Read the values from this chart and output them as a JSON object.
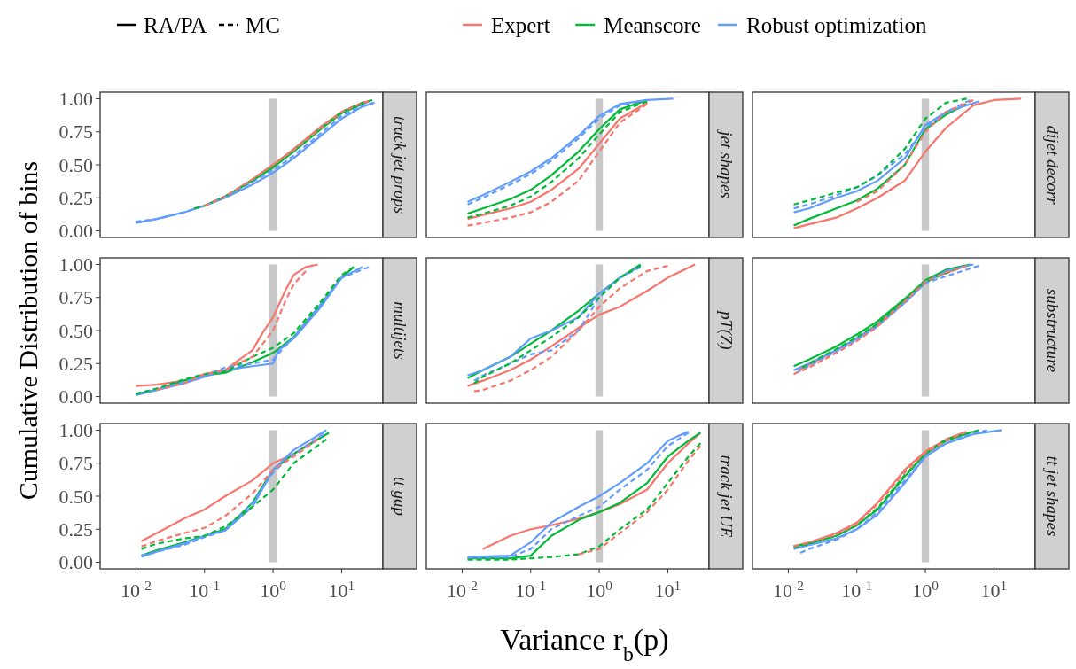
{
  "chart_data": [
    {
      "type": "line",
      "title": "track jet props",
      "legend": "top",
      "annotations": [
        "RA/PA",
        "MC"
      ],
      "log": "x",
      "tick_labels": "y",
      "xlim": [
        0.003,
        40
      ],
      "ylim": [
        -0.05,
        1.05
      ],
      "yticks": [
        {
          "value": 0,
          "label": "0.00"
        },
        {
          "value": 0.25,
          "label": "0.25"
        },
        {
          "value": 0.5,
          "label": "0.50"
        },
        {
          "value": 0.75,
          "label": "0.75"
        },
        {
          "value": 1,
          "label": "1.00"
        }
      ],
      "bands": [
        {
          "axis": "x",
          "from": 0.88,
          "to": 1.13,
          "color": "#c8c8c8"
        }
      ],
      "series": [
        {
          "name": "Expert",
          "color": "#f8766d",
          "line_style": "solid",
          "x": [
            0.1,
            0.2,
            0.5,
            1,
            2,
            5,
            10,
            20,
            25
          ],
          "values": [
            0.19,
            0.26,
            0.39,
            0.5,
            0.62,
            0.79,
            0.9,
            0.97,
            0.98
          ]
        },
        {
          "color": "#f8766d",
          "line_style": "dashed",
          "x": [
            0.1,
            0.2,
            0.5,
            1,
            2,
            5,
            10,
            20,
            25
          ],
          "values": [
            0.19,
            0.26,
            0.39,
            0.5,
            0.61,
            0.78,
            0.9,
            0.97,
            0.98
          ]
        },
        {
          "name": "Meanscore",
          "color": "#00ba38",
          "line_style": "solid",
          "x": [
            0.1,
            0.2,
            0.5,
            1,
            2,
            5,
            10,
            20,
            25
          ],
          "values": [
            0.19,
            0.26,
            0.38,
            0.48,
            0.6,
            0.77,
            0.89,
            0.96,
            0.98
          ]
        },
        {
          "color": "#00ba38",
          "line_style": "dashed",
          "x": [
            0.07,
            0.1,
            0.2,
            0.5,
            1,
            2,
            5,
            10,
            20,
            28
          ],
          "values": [
            0.17,
            0.19,
            0.26,
            0.38,
            0.49,
            0.61,
            0.78,
            0.9,
            0.97,
            0.99
          ]
        },
        {
          "name": "Robust optimization",
          "color": "#619cff",
          "line_style": "solid",
          "x": [
            0.01,
            0.02,
            0.05,
            0.1,
            0.2,
            0.5,
            1,
            2,
            5,
            10,
            20,
            30
          ],
          "values": [
            0.06,
            0.09,
            0.14,
            0.19,
            0.25,
            0.35,
            0.44,
            0.55,
            0.72,
            0.85,
            0.94,
            0.97
          ]
        },
        {
          "color": "#619cff",
          "line_style": "dashed",
          "x": [
            0.01,
            0.02,
            0.05,
            0.1,
            0.2,
            0.5,
            1,
            2,
            5,
            10,
            20,
            30
          ],
          "values": [
            0.07,
            0.09,
            0.14,
            0.19,
            0.26,
            0.37,
            0.46,
            0.57,
            0.74,
            0.87,
            0.95,
            0.97
          ]
        }
      ]
    },
    {
      "type": "line",
      "title": "jet shapes",
      "log": "x",
      "tick_labels": false,
      "xlim": [
        0.003,
        40
      ],
      "ylim": [
        -0.05,
        1.05
      ],
      "bands": [
        {
          "axis": "x",
          "from": 0.88,
          "to": 1.13,
          "color": "#c8c8c8"
        }
      ],
      "series": [
        {
          "color": "#f8766d",
          "line_style": "solid",
          "x": [
            0.012,
            0.02,
            0.05,
            0.1,
            0.2,
            0.5,
            1,
            2,
            5
          ],
          "values": [
            0.09,
            0.12,
            0.17,
            0.22,
            0.31,
            0.47,
            0.66,
            0.85,
            0.97
          ]
        },
        {
          "color": "#f8766d",
          "line_style": "dashed",
          "x": [
            0.012,
            0.02,
            0.05,
            0.1,
            0.2,
            0.5,
            1,
            2,
            5
          ],
          "values": [
            0.04,
            0.06,
            0.1,
            0.14,
            0.22,
            0.38,
            0.6,
            0.82,
            0.96
          ]
        },
        {
          "color": "#00ba38",
          "line_style": "solid",
          "x": [
            0.012,
            0.02,
            0.05,
            0.1,
            0.2,
            0.5,
            1,
            2,
            5
          ],
          "values": [
            0.13,
            0.17,
            0.24,
            0.31,
            0.42,
            0.6,
            0.77,
            0.92,
            0.99
          ]
        },
        {
          "color": "#00ba38",
          "line_style": "dashed",
          "x": [
            0.012,
            0.02,
            0.05,
            0.1,
            0.2,
            0.5,
            1,
            2,
            5
          ],
          "values": [
            0.1,
            0.13,
            0.19,
            0.26,
            0.37,
            0.55,
            0.73,
            0.9,
            0.98
          ]
        },
        {
          "color": "#619cff",
          "line_style": "solid",
          "x": [
            0.012,
            0.02,
            0.05,
            0.1,
            0.2,
            0.5,
            1,
            2,
            5,
            12
          ],
          "values": [
            0.22,
            0.27,
            0.37,
            0.45,
            0.55,
            0.72,
            0.87,
            0.96,
            0.99,
            1
          ]
        },
        {
          "color": "#619cff",
          "line_style": "dashed",
          "x": [
            0.012,
            0.02,
            0.05,
            0.1,
            0.2,
            0.5,
            1,
            2,
            5
          ],
          "values": [
            0.2,
            0.25,
            0.35,
            0.43,
            0.53,
            0.7,
            0.85,
            0.95,
            0.99
          ]
        }
      ]
    },
    {
      "type": "line",
      "title": "dijet decorr",
      "log": "x",
      "tick_labels": false,
      "xlim": [
        0.003,
        40
      ],
      "ylim": [
        -0.05,
        1.05
      ],
      "bands": [
        {
          "axis": "x",
          "from": 0.88,
          "to": 1.13,
          "color": "#c8c8c8"
        }
      ],
      "series": [
        {
          "color": "#f8766d",
          "line_style": "solid",
          "x": [
            0.012,
            0.02,
            0.05,
            0.1,
            0.2,
            0.5,
            1,
            2,
            5,
            10,
            25
          ],
          "values": [
            0.02,
            0.05,
            0.1,
            0.17,
            0.25,
            0.38,
            0.6,
            0.78,
            0.95,
            0.99,
            1
          ]
        },
        {
          "color": "#f8766d",
          "line_style": "dashed",
          "x": [
            0.1,
            0.2,
            0.5,
            1,
            2,
            5
          ],
          "values": [
            0.22,
            0.3,
            0.5,
            0.75,
            0.9,
            0.99
          ]
        },
        {
          "color": "#00ba38",
          "line_style": "solid",
          "x": [
            0.012,
            0.02,
            0.05,
            0.1,
            0.2,
            0.5,
            1,
            2,
            4
          ],
          "values": [
            0.04,
            0.09,
            0.17,
            0.23,
            0.32,
            0.5,
            0.77,
            0.88,
            0.96
          ]
        },
        {
          "color": "#00ba38",
          "line_style": "dashed",
          "x": [
            0.012,
            0.02,
            0.05,
            0.1,
            0.2,
            0.5,
            1,
            2,
            4
          ],
          "values": [
            0.2,
            0.23,
            0.29,
            0.33,
            0.42,
            0.62,
            0.85,
            0.97,
            1
          ]
        },
        {
          "color": "#619cff",
          "line_style": "solid",
          "x": [
            0.012,
            0.02,
            0.05,
            0.1,
            0.2,
            0.5,
            1,
            2,
            6
          ],
          "values": [
            0.14,
            0.17,
            0.25,
            0.3,
            0.38,
            0.55,
            0.8,
            0.9,
            0.98
          ]
        },
        {
          "color": "#619cff",
          "line_style": "dashed",
          "x": [
            0.012,
            0.02,
            0.05,
            0.1,
            0.2,
            0.5,
            1,
            2,
            4.5
          ],
          "values": [
            0.17,
            0.2,
            0.27,
            0.33,
            0.42,
            0.58,
            0.78,
            0.9,
            0.99
          ]
        }
      ]
    },
    {
      "type": "line",
      "title": "multijets",
      "ylabel": "Cumulative Distribution of bins",
      "log": "x",
      "tick_labels": "y",
      "xlim": [
        0.003,
        40
      ],
      "ylim": [
        -0.05,
        1.05
      ],
      "yticks": [
        {
          "value": 0,
          "label": "0.00"
        },
        {
          "value": 0.25,
          "label": "0.25"
        },
        {
          "value": 0.5,
          "label": "0.50"
        },
        {
          "value": 0.75,
          "label": "0.75"
        },
        {
          "value": 1,
          "label": "1.00"
        }
      ],
      "bands": [
        {
          "axis": "x",
          "from": 0.88,
          "to": 1.13,
          "color": "#c8c8c8"
        }
      ],
      "series": [
        {
          "color": "#f8766d",
          "line_style": "solid",
          "x": [
            0.01,
            0.02,
            0.05,
            0.1,
            0.2,
            0.3,
            0.5,
            0.7,
            1,
            1.5,
            2,
            3,
            4.5
          ],
          "values": [
            0.08,
            0.09,
            0.12,
            0.17,
            0.2,
            0.27,
            0.35,
            0.48,
            0.6,
            0.8,
            0.92,
            0.98,
            1
          ]
        },
        {
          "color": "#f8766d",
          "line_style": "dashed",
          "x": [
            0.02,
            0.05,
            0.1,
            0.2,
            0.3,
            0.5,
            1,
            1.5,
            2,
            3
          ],
          "values": [
            0.05,
            0.1,
            0.17,
            0.2,
            0.25,
            0.3,
            0.5,
            0.72,
            0.85,
            0.95
          ]
        },
        {
          "color": "#00ba38",
          "line_style": "solid",
          "x": [
            0.01,
            0.02,
            0.05,
            0.1,
            0.2,
            0.5,
            1,
            2,
            5,
            10,
            15
          ],
          "values": [
            0.02,
            0.05,
            0.12,
            0.16,
            0.18,
            0.26,
            0.33,
            0.45,
            0.7,
            0.9,
            0.98
          ]
        },
        {
          "color": "#00ba38",
          "line_style": "dashed",
          "x": [
            0.01,
            0.02,
            0.05,
            0.1,
            0.2,
            0.5,
            1,
            2,
            5,
            10,
            15
          ],
          "values": [
            0.02,
            0.06,
            0.13,
            0.17,
            0.19,
            0.3,
            0.37,
            0.48,
            0.72,
            0.92,
            0.98
          ]
        },
        {
          "color": "#619cff",
          "line_style": "solid",
          "x": [
            0.01,
            0.05,
            0.1,
            0.2,
            0.5,
            1,
            1.2,
            2,
            5,
            10,
            20
          ],
          "values": [
            0.01,
            0.1,
            0.15,
            0.2,
            0.23,
            0.25,
            0.35,
            0.44,
            0.68,
            0.9,
            0.98
          ]
        },
        {
          "color": "#619cff",
          "line_style": "dashed",
          "x": [
            0.01,
            0.05,
            0.1,
            0.2,
            0.5,
            1,
            2,
            5,
            10,
            25
          ],
          "values": [
            0.02,
            0.11,
            0.16,
            0.22,
            0.25,
            0.28,
            0.45,
            0.7,
            0.9,
            0.98
          ]
        }
      ]
    },
    {
      "type": "line",
      "title": "pT(Z)",
      "log": "x",
      "tick_labels": false,
      "xlim": [
        0.003,
        40
      ],
      "ylim": [
        -0.05,
        1.05
      ],
      "bands": [
        {
          "axis": "x",
          "from": 0.88,
          "to": 1.13,
          "color": "#c8c8c8"
        }
      ],
      "series": [
        {
          "color": "#f8766d",
          "line_style": "solid",
          "x": [
            0.012,
            0.02,
            0.05,
            0.1,
            0.2,
            0.5,
            1,
            2,
            5,
            10,
            25
          ],
          "values": [
            0.08,
            0.12,
            0.2,
            0.28,
            0.38,
            0.52,
            0.62,
            0.68,
            0.8,
            0.9,
            1
          ]
        },
        {
          "color": "#f8766d",
          "line_style": "dashed",
          "x": [
            0.015,
            0.02,
            0.05,
            0.1,
            0.2,
            0.5,
            1,
            2,
            5,
            10
          ],
          "values": [
            0.04,
            0.05,
            0.12,
            0.2,
            0.3,
            0.5,
            0.68,
            0.82,
            0.95,
            0.99
          ]
        },
        {
          "color": "#00ba38",
          "line_style": "solid",
          "x": [
            0.012,
            0.02,
            0.05,
            0.1,
            0.2,
            0.5,
            1,
            2,
            4
          ],
          "values": [
            0.14,
            0.2,
            0.3,
            0.4,
            0.5,
            0.65,
            0.78,
            0.9,
            1
          ]
        },
        {
          "color": "#00ba38",
          "line_style": "dashed",
          "x": [
            0.015,
            0.02,
            0.05,
            0.1,
            0.2,
            0.5,
            1,
            2,
            4
          ],
          "values": [
            0.1,
            0.15,
            0.25,
            0.35,
            0.45,
            0.6,
            0.75,
            0.9,
            0.99
          ]
        },
        {
          "color": "#619cff",
          "line_style": "solid",
          "x": [
            0.012,
            0.02,
            0.05,
            0.1,
            0.2,
            0.5,
            1,
            2,
            4
          ],
          "values": [
            0.16,
            0.2,
            0.3,
            0.44,
            0.5,
            0.6,
            0.78,
            0.9,
            0.99
          ]
        },
        {
          "color": "#619cff",
          "line_style": "dashed",
          "x": [
            0.015,
            0.02,
            0.05,
            0.1,
            0.2,
            0.5,
            1,
            2,
            4
          ],
          "values": [
            0.12,
            0.16,
            0.25,
            0.32,
            0.35,
            0.5,
            0.75,
            0.9,
            0.98
          ]
        }
      ]
    },
    {
      "type": "line",
      "title": "substructure",
      "log": "x",
      "tick_labels": false,
      "xlim": [
        0.003,
        40
      ],
      "ylim": [
        -0.05,
        1.05
      ],
      "bands": [
        {
          "axis": "x",
          "from": 0.88,
          "to": 1.13,
          "color": "#c8c8c8"
        }
      ],
      "series": [
        {
          "color": "#f8766d",
          "line_style": "solid",
          "x": [
            0.014,
            0.02,
            0.05,
            0.1,
            0.2,
            0.5,
            1,
            3.5
          ],
          "values": [
            0.2,
            0.24,
            0.35,
            0.44,
            0.55,
            0.73,
            0.88,
            0.98
          ]
        },
        {
          "color": "#f8766d",
          "line_style": "dashed",
          "x": [
            0.012,
            0.02,
            0.05,
            0.1,
            0.2,
            0.5,
            1,
            2,
            4
          ],
          "values": [
            0.17,
            0.22,
            0.33,
            0.42,
            0.53,
            0.72,
            0.87,
            0.94,
            0.99
          ]
        },
        {
          "color": "#00ba38",
          "line_style": "solid",
          "x": [
            0.012,
            0.02,
            0.05,
            0.1,
            0.2,
            0.5,
            1,
            2,
            4.5
          ],
          "values": [
            0.23,
            0.28,
            0.38,
            0.47,
            0.57,
            0.74,
            0.88,
            0.96,
            1
          ]
        },
        {
          "color": "#00ba38",
          "line_style": "dashed",
          "x": [
            0.016,
            0.02,
            0.05,
            0.1,
            0.2,
            0.5,
            1,
            3
          ],
          "values": [
            0.22,
            0.25,
            0.36,
            0.45,
            0.55,
            0.73,
            0.87,
            0.97
          ]
        },
        {
          "color": "#619cff",
          "line_style": "solid",
          "x": [
            0.012,
            0.02,
            0.05,
            0.1,
            0.2,
            0.5,
            1,
            2,
            5
          ],
          "values": [
            0.2,
            0.25,
            0.35,
            0.44,
            0.54,
            0.71,
            0.86,
            0.95,
            1
          ]
        },
        {
          "color": "#619cff",
          "line_style": "dashed",
          "x": [
            0.013,
            0.02,
            0.05,
            0.1,
            0.2,
            0.5,
            1,
            6
          ],
          "values": [
            0.18,
            0.23,
            0.34,
            0.43,
            0.53,
            0.71,
            0.86,
            0.99
          ]
        }
      ]
    },
    {
      "type": "line",
      "title": "tt gap",
      "log": "x",
      "xlim": [
        0.003,
        40
      ],
      "ylim": [
        -0.05,
        1.05
      ],
      "xticks": [
        {
          "value": 0.01,
          "label": "10$^{-2}$"
        },
        {
          "value": 0.1,
          "label": "10$^{-1}$"
        },
        {
          "value": 1,
          "label": "10$^{0}$"
        },
        {
          "value": 10,
          "label": "10$^{1}$"
        }
      ],
      "yticks": [
        {
          "value": 0,
          "label": "0.00"
        },
        {
          "value": 0.25,
          "label": "0.25"
        },
        {
          "value": 0.5,
          "label": "0.50"
        },
        {
          "value": 0.75,
          "label": "0.75"
        },
        {
          "value": 1,
          "label": "1.00"
        }
      ],
      "bands": [
        {
          "axis": "x",
          "from": 0.88,
          "to": 1.13,
          "color": "#c8c8c8"
        }
      ],
      "series": [
        {
          "color": "#f8766d",
          "line_style": "solid",
          "x": [
            0.012,
            0.02,
            0.05,
            0.1,
            0.2,
            0.5,
            1,
            2,
            5
          ],
          "values": [
            0.16,
            0.22,
            0.33,
            0.4,
            0.5,
            0.62,
            0.75,
            0.82,
            0.95
          ]
        },
        {
          "color": "#f8766d",
          "line_style": "dashed",
          "x": [
            0.012,
            0.02,
            0.05,
            0.1,
            0.2,
            0.5,
            1,
            2,
            4.5
          ],
          "values": [
            0.12,
            0.16,
            0.22,
            0.26,
            0.35,
            0.52,
            0.7,
            0.8,
            0.93
          ]
        },
        {
          "color": "#00ba38",
          "line_style": "solid",
          "x": [
            0.012,
            0.02,
            0.05,
            0.1,
            0.2,
            0.5,
            1,
            2,
            6.5
          ],
          "values": [
            0.05,
            0.09,
            0.15,
            0.2,
            0.25,
            0.45,
            0.7,
            0.82,
            0.98
          ]
        },
        {
          "color": "#00ba38",
          "line_style": "dashed",
          "x": [
            0.012,
            0.02,
            0.05,
            0.1,
            0.2,
            0.5,
            1,
            2,
            6
          ],
          "values": [
            0.1,
            0.14,
            0.18,
            0.2,
            0.27,
            0.42,
            0.55,
            0.75,
            0.93
          ]
        },
        {
          "color": "#619cff",
          "line_style": "solid",
          "x": [
            0.012,
            0.02,
            0.05,
            0.1,
            0.2,
            0.5,
            1,
            2,
            6
          ],
          "values": [
            0.04,
            0.08,
            0.14,
            0.2,
            0.24,
            0.42,
            0.7,
            0.85,
            1
          ]
        },
        {
          "color": "#619cff",
          "line_style": "dashed",
          "x": [
            0.012,
            0.02,
            0.05,
            0.1,
            0.2,
            0.5,
            1,
            2,
            5.5
          ],
          "values": [
            0.05,
            0.08,
            0.13,
            0.19,
            0.24,
            0.45,
            0.68,
            0.82,
            0.97
          ]
        }
      ]
    },
    {
      "type": "line",
      "title": "track jet UE",
      "xlabel": "Variance r$_{b}$(p)",
      "log": "x",
      "tick_labels": "x",
      "xlim": [
        0.003,
        40
      ],
      "ylim": [
        -0.05,
        1.05
      ],
      "xticks": [
        {
          "value": 0.01,
          "label": "10$^{-2}$"
        },
        {
          "value": 0.1,
          "label": "10$^{-1}$"
        },
        {
          "value": 1,
          "label": "10$^{0}$"
        },
        {
          "value": 10,
          "label": "10$^{1}$"
        }
      ],
      "bands": [
        {
          "axis": "x",
          "from": 0.88,
          "to": 1.13,
          "color": "#c8c8c8"
        }
      ],
      "series": [
        {
          "color": "#f8766d",
          "line_style": "solid",
          "x": [
            0.02,
            0.05,
            0.1,
            0.2,
            0.5,
            1,
            2,
            5,
            10,
            20,
            30
          ],
          "values": [
            0.1,
            0.2,
            0.25,
            0.28,
            0.33,
            0.38,
            0.44,
            0.55,
            0.75,
            0.9,
            0.98
          ]
        },
        {
          "color": "#f8766d",
          "line_style": "dashed",
          "x": [
            0.5,
            1,
            2,
            5,
            10,
            20,
            30
          ],
          "values": [
            0.06,
            0.1,
            0.22,
            0.38,
            0.55,
            0.77,
            0.88
          ]
        },
        {
          "color": "#00ba38",
          "line_style": "solid",
          "x": [
            0.012,
            0.05,
            0.1,
            0.2,
            0.5,
            1,
            2,
            5,
            10,
            20,
            30
          ],
          "values": [
            0.03,
            0.03,
            0.05,
            0.2,
            0.32,
            0.38,
            0.45,
            0.6,
            0.8,
            0.92,
            0.98
          ]
        },
        {
          "color": "#00ba38",
          "line_style": "dashed",
          "x": [
            0.012,
            0.05,
            0.1,
            0.2,
            0.5,
            1,
            2,
            5,
            10,
            20,
            30
          ],
          "values": [
            0.02,
            0.02,
            0.03,
            0.04,
            0.06,
            0.12,
            0.25,
            0.4,
            0.6,
            0.8,
            0.9
          ]
        },
        {
          "color": "#619cff",
          "line_style": "solid",
          "x": [
            0.012,
            0.05,
            0.1,
            0.2,
            0.5,
            1,
            2,
            5,
            10,
            20
          ],
          "values": [
            0.04,
            0.05,
            0.15,
            0.3,
            0.42,
            0.5,
            0.6,
            0.75,
            0.92,
            0.99
          ]
        },
        {
          "color": "#619cff",
          "line_style": "dashed",
          "x": [
            0.012,
            0.05,
            0.1,
            0.2,
            0.5,
            1,
            2,
            5,
            10,
            20
          ],
          "values": [
            0.03,
            0.04,
            0.1,
            0.25,
            0.35,
            0.42,
            0.55,
            0.7,
            0.88,
            0.98
          ]
        }
      ]
    },
    {
      "type": "line",
      "title": "tt jet shapes",
      "log": "x",
      "tick_labels": "x",
      "xlim": [
        0.003,
        40
      ],
      "ylim": [
        -0.05,
        1.05
      ],
      "xticks": [
        {
          "value": 0.01,
          "label": "10$^{-2}$"
        },
        {
          "value": 0.1,
          "label": "10$^{-1}$"
        },
        {
          "value": 1,
          "label": "10$^{0}$"
        },
        {
          "value": 10,
          "label": "10$^{1}$"
        }
      ],
      "bands": [
        {
          "axis": "x",
          "from": 0.88,
          "to": 1.13,
          "color": "#c8c8c8"
        }
      ],
      "series": [
        {
          "color": "#f8766d",
          "line_style": "solid",
          "x": [
            0.012,
            0.02,
            0.05,
            0.1,
            0.2,
            0.5,
            1,
            2,
            3.5
          ],
          "values": [
            0.12,
            0.15,
            0.22,
            0.3,
            0.45,
            0.7,
            0.84,
            0.93,
            0.98
          ]
        },
        {
          "color": "#f8766d",
          "line_style": "dashed",
          "x": [
            0.012,
            0.02,
            0.05,
            0.1,
            0.2,
            0.5,
            1,
            2,
            4
          ],
          "values": [
            0.12,
            0.15,
            0.21,
            0.29,
            0.44,
            0.68,
            0.83,
            0.92,
            0.99
          ]
        },
        {
          "color": "#00ba38",
          "line_style": "solid",
          "x": [
            0.012,
            0.02,
            0.05,
            0.1,
            0.2,
            0.5,
            1,
            2,
            5
          ],
          "values": [
            0.12,
            0.14,
            0.2,
            0.28,
            0.4,
            0.65,
            0.82,
            0.92,
            0.99
          ]
        },
        {
          "color": "#00ba38",
          "line_style": "dashed",
          "x": [
            0.012,
            0.02,
            0.05,
            0.1,
            0.2,
            0.5,
            1,
            2,
            6
          ],
          "values": [
            0.11,
            0.14,
            0.2,
            0.28,
            0.41,
            0.66,
            0.82,
            0.93,
            1
          ]
        },
        {
          "color": "#619cff",
          "line_style": "solid",
          "x": [
            0.012,
            0.02,
            0.05,
            0.1,
            0.2,
            0.5,
            1,
            2,
            5,
            13
          ],
          "values": [
            0.1,
            0.13,
            0.18,
            0.25,
            0.36,
            0.6,
            0.8,
            0.9,
            0.97,
            1
          ]
        },
        {
          "color": "#619cff",
          "line_style": "dashed",
          "x": [
            0.015,
            0.02,
            0.05,
            0.1,
            0.2,
            0.5,
            1,
            2,
            4.5,
            8
          ],
          "values": [
            0.07,
            0.1,
            0.17,
            0.25,
            0.38,
            0.62,
            0.8,
            0.9,
            0.97,
            1
          ]
        }
      ]
    }
  ]
}
